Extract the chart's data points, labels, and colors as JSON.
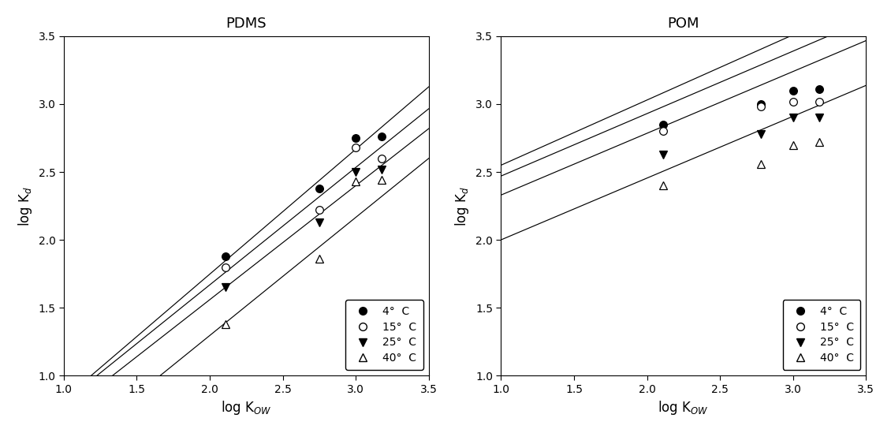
{
  "pdms_title": "PDMS",
  "pom_title": "POM",
  "xlabel": "log K$_{OW}$",
  "ylabel": "log K$_d$",
  "xlim": [
    1.0,
    3.5
  ],
  "ylim": [
    1.0,
    3.5
  ],
  "yticks": [
    1.0,
    1.5,
    2.0,
    2.5,
    3.0,
    3.5
  ],
  "xticks": [
    1.0,
    1.5,
    2.0,
    2.5,
    3.0,
    3.5
  ],
  "legend_labels": [
    "4°  C",
    "15°  C",
    "25°  C",
    "40°  C"
  ],
  "pdms": {
    "4C": {
      "x": [
        2.11,
        2.75,
        3.0,
        3.18
      ],
      "y": [
        1.88,
        2.38,
        2.75,
        2.76
      ]
    },
    "15C": {
      "x": [
        2.11,
        2.75,
        3.0,
        3.18
      ],
      "y": [
        1.8,
        2.22,
        2.68,
        2.6
      ]
    },
    "25C": {
      "x": [
        2.11,
        2.75,
        3.0,
        3.18
      ],
      "y": [
        1.65,
        2.13,
        2.5,
        2.52
      ]
    },
    "40C": {
      "x": [
        2.11,
        2.75,
        3.0,
        3.18
      ],
      "y": [
        1.38,
        1.86,
        2.43,
        2.44
      ]
    }
  },
  "pom": {
    "4C": {
      "x": [
        2.11,
        2.78,
        3.0,
        3.18
      ],
      "y": [
        2.85,
        3.0,
        3.1,
        3.11
      ]
    },
    "15C": {
      "x": [
        2.11,
        2.78,
        3.0,
        3.18
      ],
      "y": [
        2.8,
        2.98,
        3.02,
        3.02
      ]
    },
    "25C": {
      "x": [
        2.11,
        2.78,
        3.0,
        3.18
      ],
      "y": [
        2.63,
        2.78,
        2.9,
        2.9
      ]
    },
    "40C": {
      "x": [
        2.11,
        2.78,
        3.0,
        3.18
      ],
      "y": [
        2.4,
        2.56,
        2.7,
        2.72
      ]
    }
  },
  "pdms_lines": {
    "4C": {
      "slope": 0.92,
      "intercept": -0.093
    },
    "15C": {
      "slope": 0.865,
      "intercept": -0.062
    },
    "25C": {
      "slope": 0.84,
      "intercept": -0.121
    },
    "40C": {
      "slope": 0.87,
      "intercept": -0.445
    }
  },
  "pom_lines": {
    "4C": {
      "slope": 0.48,
      "intercept": 2.07
    },
    "15C": {
      "slope": 0.46,
      "intercept": 2.01
    },
    "25C": {
      "slope": 0.455,
      "intercept": 1.875
    },
    "40C": {
      "slope": 0.455,
      "intercept": 1.545
    }
  },
  "line_x": [
    1.0,
    3.5
  ]
}
